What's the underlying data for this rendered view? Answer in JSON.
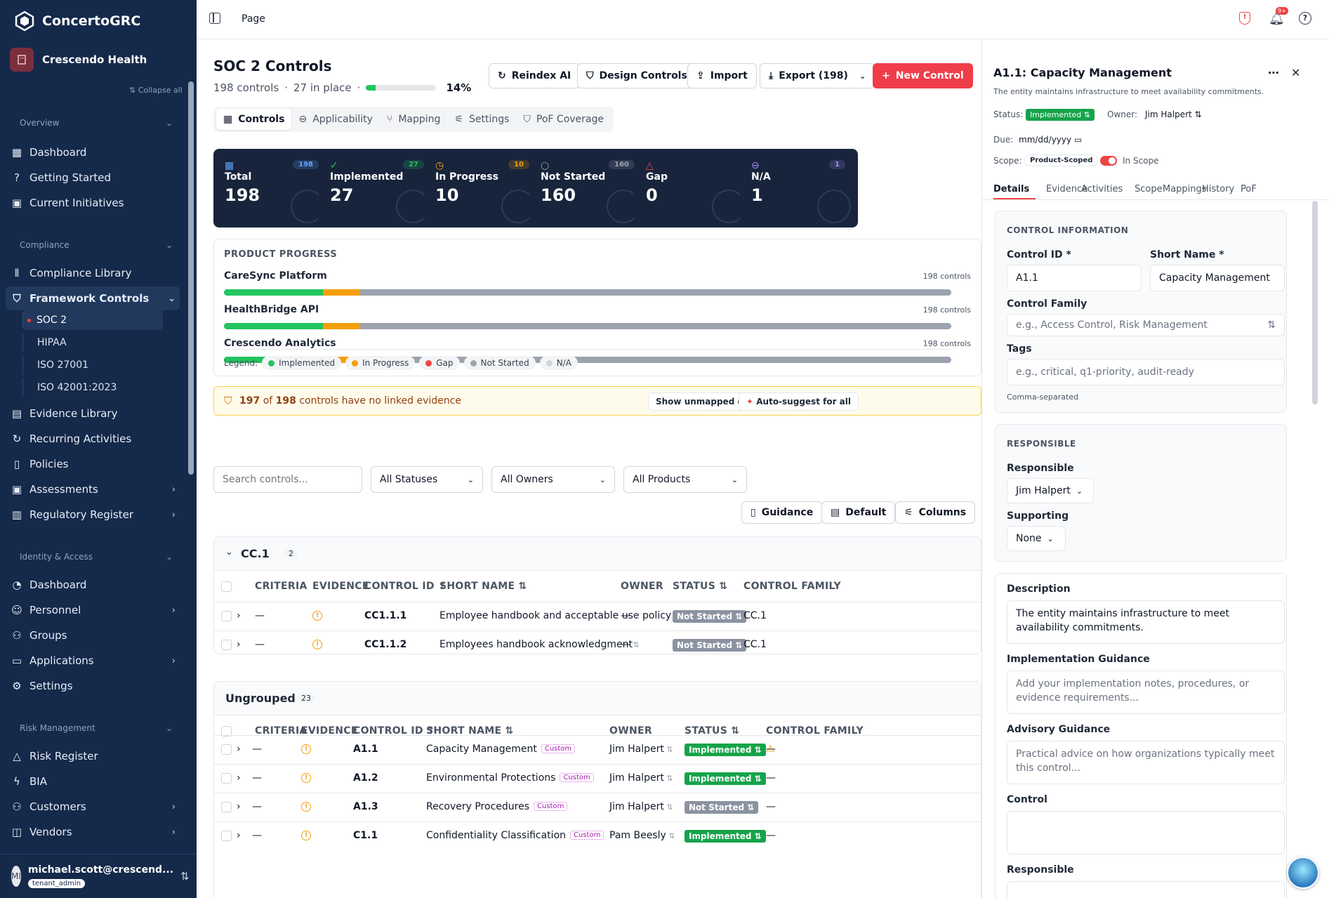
{
  "app": {
    "name": "ConcertoGRC",
    "tenant": "Crescendo Health",
    "collapse_all": "Collapse all"
  },
  "sidebar": {
    "sections": {
      "overview": "Overview",
      "compliance": "Compliance",
      "identity": "Identity & Access",
      "risk": "Risk Management"
    },
    "overview_items": [
      "Dashboard",
      "Getting Started",
      "Current Initiatives"
    ],
    "compliance_items": [
      "Compliance Library",
      "Framework Controls"
    ],
    "framework_subs": [
      "SOC 2",
      "HIPAA",
      "ISO 27001",
      "ISO 42001:2023"
    ],
    "compliance_items2": [
      "Evidence Library",
      "Recurring Activities",
      "Policies",
      "Assessments",
      "Regulatory Register"
    ],
    "identity_items": [
      "Dashboard",
      "Personnel",
      "Groups",
      "Applications",
      "Settings"
    ],
    "risk_items": [
      "Risk Register",
      "BIA",
      "Customers",
      "Vendors"
    ],
    "user": {
      "email": "michael.scott@crescend...",
      "role": "tenant_admin",
      "initials": "MI"
    }
  },
  "topbar": {
    "breadcrumb": "Page",
    "notif_count": "9+"
  },
  "header": {
    "title": "SOC 2 Controls",
    "count": "198 controls",
    "in_place": "27 in place",
    "pct": "14%",
    "progress": 0.14
  },
  "actions": {
    "reindex": "Reindex AI",
    "design": "Design Controls",
    "import": "Import",
    "export": "Export (198)",
    "new": "New Control"
  },
  "tabs": [
    "Controls",
    "Applicability",
    "Mapping",
    "Settings",
    "PoF Coverage"
  ],
  "stats": [
    {
      "label": "Total",
      "value": "198",
      "badge": "198",
      "color": "#60a5fa"
    },
    {
      "label": "Implemented",
      "value": "27",
      "badge": "27",
      "color": "#22c55e"
    },
    {
      "label": "In Progress",
      "value": "10",
      "badge": "10",
      "color": "#f59e0b"
    },
    {
      "label": "Not Started",
      "value": "160",
      "badge": "160",
      "color": "#9ca3af"
    },
    {
      "label": "Gap",
      "value": "0",
      "badge": "",
      "color": "#ef4444"
    },
    {
      "label": "N/A",
      "value": "1",
      "badge": "1",
      "color": "#a78bfa"
    }
  ],
  "product_progress": {
    "title": "PRODUCT PROGRESS",
    "products": [
      {
        "name": "CareSync Platform",
        "count": "198 controls",
        "implemented": 0.136,
        "in_progress": 0.051
      },
      {
        "name": "HealthBridge API",
        "count": "198 controls",
        "implemented": 0.136,
        "in_progress": 0.051
      },
      {
        "name": "Crescendo Analytics",
        "count": "198 controls",
        "implemented": 0.136,
        "in_progress": 0.051
      }
    ],
    "legend_label": "Legend:",
    "legend": [
      {
        "name": "Implemented",
        "color": "#22c55e"
      },
      {
        "name": "In Progress",
        "color": "#f59e0b"
      },
      {
        "name": "Gap",
        "color": "#ef4444"
      },
      {
        "name": "Not Started",
        "color": "#9ca3af"
      },
      {
        "name": "N/A",
        "color": "#d1d5db"
      }
    ]
  },
  "evidence_banner": {
    "n": "197",
    "of": "of",
    "total": "198",
    "rest": "controls have no linked evidence",
    "show_unmapped": "Show unmapped only",
    "auto_suggest": "Auto-suggest for all"
  },
  "filters": {
    "search_placeholder": "Search controls...",
    "status": "All Statuses",
    "owners": "All Owners",
    "products": "All Products"
  },
  "view": {
    "guidance": "Guidance",
    "default": "Default",
    "columns": "Columns"
  },
  "columns": {
    "criteria": "CRITERIA",
    "evidence": "EVIDENCE",
    "control_id": "CONTROL ID",
    "short_name": "SHORT NAME",
    "owner": "OWNER",
    "status": "STATUS",
    "family": "CONTROL FAMILY"
  },
  "group1": {
    "name": "CC.1",
    "count": "2",
    "rows": [
      {
        "criteria": "—",
        "id": "CC1.1.1",
        "name": "Employee handbook and acceptable use policy",
        "owner": "—",
        "status": "Not Started",
        "family": "CC.1"
      },
      {
        "criteria": "—",
        "id": "CC1.1.2",
        "name": "Employees handbook acknowledgment",
        "owner": "—",
        "status": "Not Started",
        "family": "CC.1"
      }
    ]
  },
  "group2": {
    "name": "Ungrouped",
    "count": "23",
    "custom": "Custom",
    "rows": [
      {
        "criteria": "—",
        "id": "A1.1",
        "name": "Capacity Management",
        "owner": "Jim Halpert",
        "status": "Implemented",
        "family": "—"
      },
      {
        "criteria": "—",
        "id": "A1.2",
        "name": "Environmental Protections",
        "owner": "Jim Halpert",
        "status": "Implemented",
        "family": "—"
      },
      {
        "criteria": "—",
        "id": "A1.3",
        "name": "Recovery Procedures",
        "owner": "Jim Halpert",
        "status": "Not Started",
        "family": "—"
      },
      {
        "criteria": "—",
        "id": "C1.1",
        "name": "Confidentiality Classification",
        "owner": "Pam Beesly",
        "status": "Implemented",
        "family": "—"
      }
    ]
  },
  "panel": {
    "title": "A1.1: Capacity Management",
    "subtitle": "The entity maintains infrastructure to meet availability commitments.",
    "status_label": "Status:",
    "status": "Implemented",
    "owner_label": "Owner:",
    "owner": "Jim Halpert",
    "due_label": "Due:",
    "due_placeholder": "mm/dd/yyyy",
    "scope_label": "Scope:",
    "scope": "Product-Scoped",
    "in_scope": "In Scope",
    "tabs": [
      "Details",
      "Evidence",
      "Activities",
      "Scope",
      "Mappings",
      "History",
      "PoF"
    ],
    "info": {
      "heading": "CONTROL INFORMATION",
      "id_label": "Control ID *",
      "id": "A1.1",
      "short_label": "Short Name *",
      "short": "Capacity Management",
      "family_label": "Control Family",
      "family_ph": "e.g., Access Control, Risk Management",
      "tags_label": "Tags",
      "tags_ph": "e.g., critical, q1-priority, audit-ready",
      "tags_help": "Comma-separated"
    },
    "responsible": {
      "heading": "RESPONSIBLE",
      "resp_label": "Responsible",
      "resp": "Jim Halpert",
      "supp_label": "Supporting",
      "supp": "None"
    },
    "desc": {
      "label": "Description",
      "value": "The entity maintains infrastructure to meet availability commitments.",
      "impl_label": "Implementation Guidance",
      "impl_ph": "Add your implementation notes, procedures, or evidence requirements...",
      "adv_label": "Advisory Guidance",
      "adv_ph": "Practical advice on how organizations typically meet this control...",
      "control_label": "Control",
      "resp_label": "Responsible"
    }
  }
}
